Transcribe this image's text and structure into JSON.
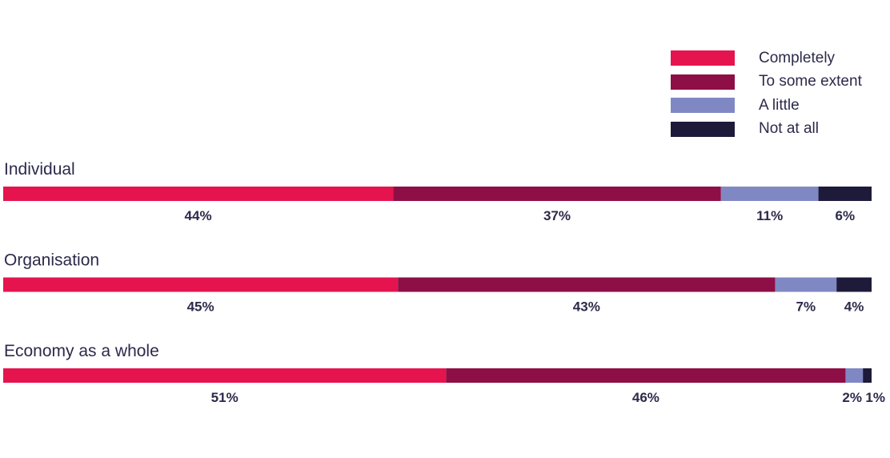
{
  "chart_data": {
    "type": "bar",
    "orientation": "horizontal",
    "stacked": true,
    "percent_stacked": true,
    "categories": [
      "Individual",
      "Organisation",
      "Economy as a whole"
    ],
    "series": [
      {
        "name": "Completely",
        "color": "#e5144e",
        "values": [
          44,
          45,
          51
        ],
        "labels": [
          "44%",
          "45%",
          "51%"
        ]
      },
      {
        "name": "To some extent",
        "color": "#8e0e46",
        "values": [
          37,
          43,
          46
        ],
        "labels": [
          "37%",
          "43%",
          "46%"
        ]
      },
      {
        "name": "A little",
        "color": "#8088c4",
        "values": [
          11,
          7,
          2
        ],
        "labels": [
          "11%",
          "7%",
          "2%"
        ]
      },
      {
        "name": "Not at all",
        "color": "#1e1a3a",
        "values": [
          6,
          4,
          1
        ],
        "labels": [
          "6%",
          "4%",
          "1%"
        ]
      }
    ],
    "legend_position": "top-right",
    "grid": false,
    "title": "",
    "xlabel": "",
    "ylabel": ""
  }
}
